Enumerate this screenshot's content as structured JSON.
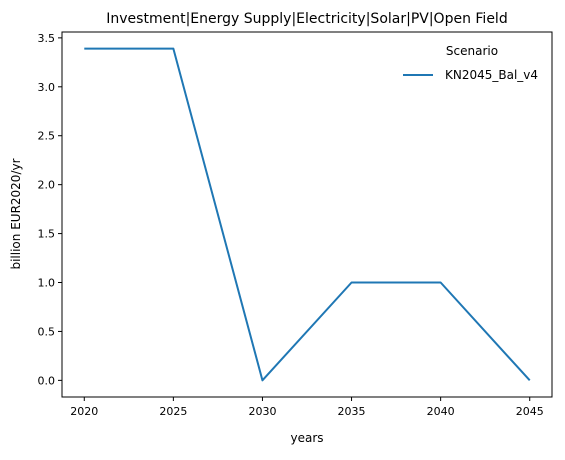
{
  "chart_data": {
    "type": "line",
    "title": "Investment|Energy Supply|Electricity|Solar|PV|Open Field",
    "xlabel": "years",
    "ylabel": "billion EUR2020/yr",
    "x": [
      2020,
      2025,
      2030,
      2035,
      2040,
      2045
    ],
    "x_ticks": [
      "2020",
      "2025",
      "2030",
      "2035",
      "2040",
      "2045"
    ],
    "y_ticks": [
      "0.0",
      "0.5",
      "1.0",
      "1.5",
      "2.0",
      "2.5",
      "3.0",
      "3.5"
    ],
    "xlim": [
      2018.75,
      2046.25
    ],
    "ylim": [
      -0.17,
      3.56
    ],
    "grid": false,
    "legend": {
      "title": "Scenario",
      "placement": "top-right"
    },
    "series": [
      {
        "name": "KN2045_Bal_v4",
        "color": "#1f77b4",
        "values": [
          3.39,
          3.39,
          0.0,
          1.0,
          1.0,
          0.0
        ]
      }
    ]
  }
}
